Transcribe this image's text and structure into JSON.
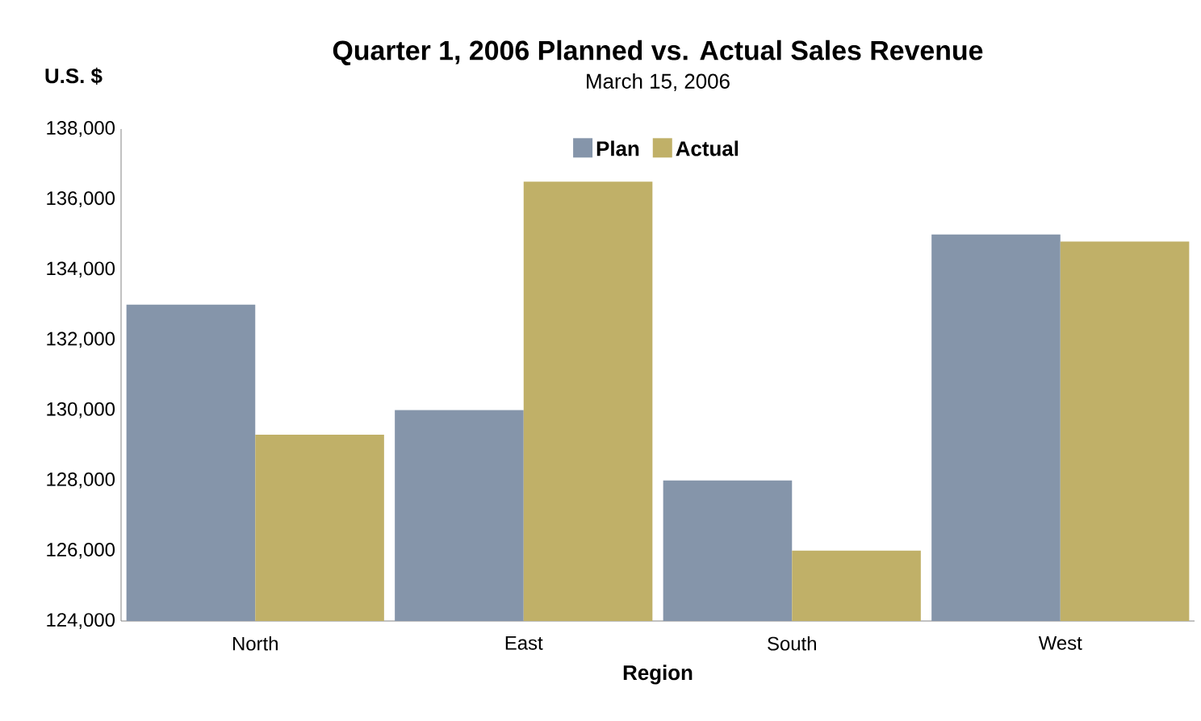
{
  "chart_data": {
    "type": "bar",
    "title": "Quarter 1, 2006 Planned vs. Actual Sales Revenue",
    "subtitle": "March 15, 2006",
    "xlabel": "Region",
    "ylabel": "U.S. $",
    "categories": [
      "North",
      "East",
      "South",
      "West"
    ],
    "series": [
      {
        "name": "Plan",
        "color": "#8595aa",
        "values": [
          133000,
          130000,
          128000,
          135000
        ]
      },
      {
        "name": "Actual",
        "color": "#c0b068",
        "values": [
          129300,
          136500,
          126000,
          134800
        ]
      }
    ],
    "ylim": [
      124000,
      138000
    ],
    "yticks": [
      {
        "value": 124000,
        "label": "124,000"
      },
      {
        "value": 126000,
        "label": "126,000"
      },
      {
        "value": 128000,
        "label": "128,000"
      },
      {
        "value": 130000,
        "label": "130,000"
      },
      {
        "value": 132000,
        "label": "132,000"
      },
      {
        "value": 134000,
        "label": "134,000"
      },
      {
        "value": 136000,
        "label": "136,000"
      },
      {
        "value": 138000,
        "label": "138,000"
      }
    ],
    "legend": "top"
  }
}
